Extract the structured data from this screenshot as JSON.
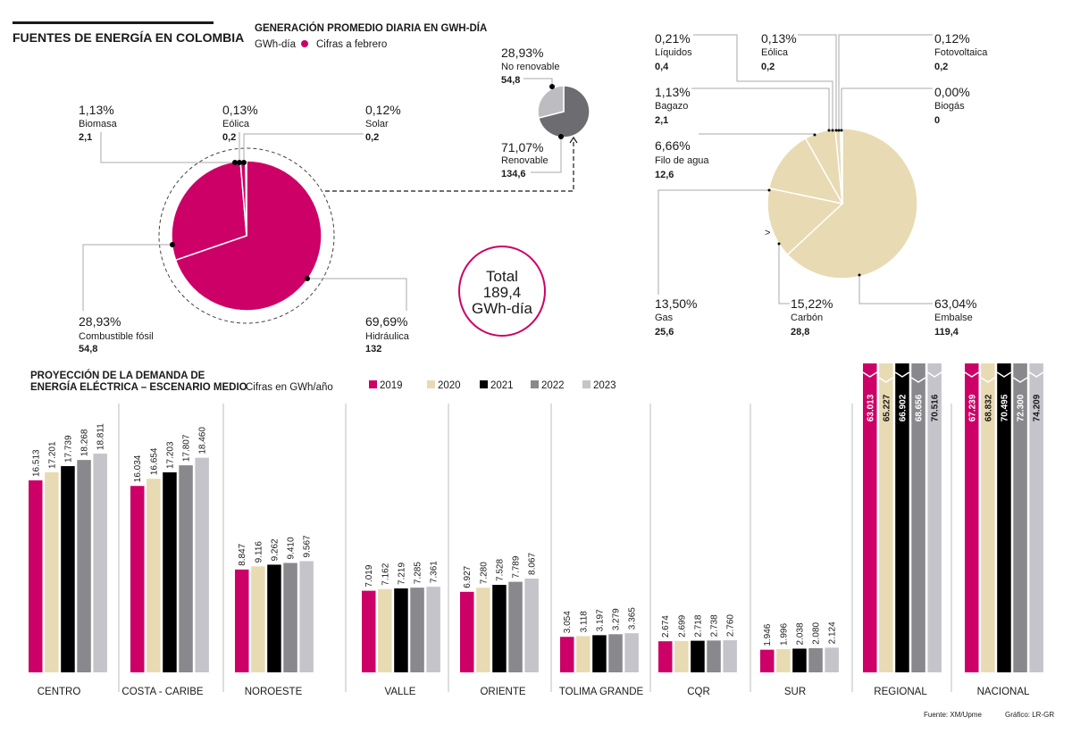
{
  "header": {
    "main_title": "FUENTES DE ENERGÍA EN COLOMBIA",
    "section_title": "GENERACIÓN PROMEDIO DIARIA EN GWH-DÍA",
    "unit": "GWh-día",
    "note": "Cifras a febrero"
  },
  "total": {
    "line1": "Total",
    "line2": "189,4",
    "line3": "GWh-día"
  },
  "colors": {
    "magenta": "#cc0066",
    "beige": "#e8dab2",
    "black": "#000000",
    "dark_gray": "#89888c",
    "light_gray": "#c4c4ca",
    "pie_gray_dark": "#6d6c70",
    "pie_gray_light": "#bdbdc1"
  },
  "chart_data": [
    {
      "type": "pie",
      "title": "Generación por fuente",
      "slices": [
        {
          "name": "Hidráulica",
          "pct": "69,69%",
          "value": 132,
          "value_label": "132"
        },
        {
          "name": "Combustible fósil",
          "pct": "28,93%",
          "value": 54.8,
          "value_label": "54,8"
        },
        {
          "name": "Biomasa",
          "pct": "1,13%",
          "value": 2.1,
          "value_label": "2,1"
        },
        {
          "name": "Eólica",
          "pct": "0,13%",
          "value": 0.2,
          "value_label": "0,2"
        },
        {
          "name": "Solar",
          "pct": "0,12%",
          "value": 0.2,
          "value_label": "0,2"
        }
      ]
    },
    {
      "type": "pie",
      "title": "Renovable vs no renovable",
      "slices": [
        {
          "name": "Renovable",
          "pct": "71,07%",
          "value": 134.6,
          "value_label": "134,6"
        },
        {
          "name": "No renovable",
          "pct": "28,93%",
          "value": 54.8,
          "value_label": "54,8"
        }
      ]
    },
    {
      "type": "pie",
      "title": "Detalle por tecnología",
      "slices": [
        {
          "name": "Embalse",
          "pct": "63,04%",
          "value": 119.4,
          "value_label": "119,4"
        },
        {
          "name": "Carbón",
          "pct": "15,22%",
          "value": 28.8,
          "value_label": "28,8"
        },
        {
          "name": "Gas",
          "pct": "13,50%",
          "value": 25.6,
          "value_label": "25,6"
        },
        {
          "name": "Filo de agua",
          "pct": "6,66%",
          "value": 12.6,
          "value_label": "12,6"
        },
        {
          "name": "Bagazo",
          "pct": "1,13%",
          "value": 2.1,
          "value_label": "2,1"
        },
        {
          "name": "Líquidos",
          "pct": "0,21%",
          "value": 0.4,
          "value_label": "0,4"
        },
        {
          "name": "Eólica",
          "pct": "0,13%",
          "value": 0.2,
          "value_label": "0,2"
        },
        {
          "name": "Fotovoltaica",
          "pct": "0,12%",
          "value": 0.2,
          "value_label": "0,2"
        },
        {
          "name": "Biogás",
          "pct": "0,00%",
          "value": 0,
          "value_label": "0"
        }
      ]
    },
    {
      "type": "bar",
      "title": "PROYECCIÓN DE LA DEMANDA DE ENERGÍA ELÉCTRICA – ESCENARIO MEDIO",
      "title_line1": "PROYECCIÓN DE LA DEMANDA DE",
      "title_line2": "ENERGÍA ELÉCTRICA – ESCENARIO MEDIO",
      "unit_note": "Cifras en GWh/año",
      "categories": [
        "CENTRO",
        "COSTA - CARIBE",
        "NOROESTE",
        "VALLE",
        "ORIENTE",
        "TOLIMA GRANDE",
        "CQR",
        "SUR",
        "REGIONAL",
        "NACIONAL"
      ],
      "truncated_categories": [
        "REGIONAL",
        "NACIONAL"
      ],
      "series": [
        {
          "name": "2019",
          "values": [
            16513,
            16034,
            8847,
            7019,
            6927,
            3054,
            2674,
            1946,
            63013,
            67239
          ],
          "labels": [
            "16.513",
            "16.034",
            "8.847",
            "7.019",
            "6.927",
            "3.054",
            "2.674",
            "1.946",
            "63.013",
            "67.239"
          ]
        },
        {
          "name": "2020",
          "values": [
            17201,
            16654,
            9116,
            7162,
            7280,
            3118,
            2699,
            1996,
            65227,
            68832
          ],
          "labels": [
            "17.201",
            "16.654",
            "9.116",
            "7.162",
            "7.280",
            "3.118",
            "2.699",
            "1.996",
            "65.227",
            "68.832"
          ]
        },
        {
          "name": "2021",
          "values": [
            17739,
            17203,
            9262,
            7219,
            7528,
            3197,
            2718,
            2038,
            66902,
            70495
          ],
          "labels": [
            "17.739",
            "17.203",
            "9.262",
            "7.219",
            "7.528",
            "3.197",
            "2.718",
            "2.038",
            "66.902",
            "70.495"
          ]
        },
        {
          "name": "2022",
          "values": [
            18268,
            17807,
            9410,
            7285,
            7789,
            3279,
            2738,
            2080,
            68656,
            72300
          ],
          "labels": [
            "18.268",
            "17.807",
            "9.410",
            "7.285",
            "7.789",
            "3.279",
            "2.738",
            "2.080",
            "68.656",
            "72.300"
          ]
        },
        {
          "name": "2023",
          "values": [
            18811,
            18460,
            9567,
            7361,
            8067,
            3365,
            2760,
            2124,
            70516,
            74209
          ],
          "labels": [
            "18.811",
            "18.460",
            "9.567",
            "7.361",
            "8.067",
            "3.365",
            "2.760",
            "2.124",
            "70.516",
            "74.209"
          ]
        }
      ],
      "legend": [
        "2019",
        "2020",
        "2021",
        "2022",
        "2023"
      ],
      "legend_position": "top",
      "ylim": [
        0,
        20000
      ],
      "grid": false
    }
  ],
  "footer": {
    "source": "Fuente: XM/Upme",
    "credit": "Gráfico: LR-GR"
  }
}
